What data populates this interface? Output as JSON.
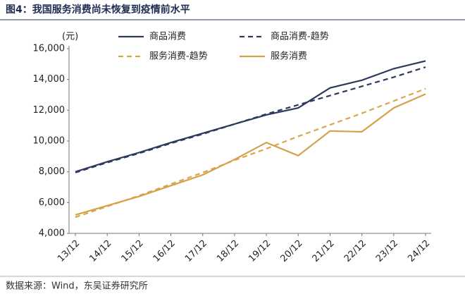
{
  "chart_data": {
    "type": "line",
    "title": "图4：我国服务消费尚未恢复到疫情前水平",
    "y_unit": "(元)",
    "source": "数据来源：Wind，东吴证券研究所",
    "categories": [
      "13/12",
      "14/12",
      "15/12",
      "16/12",
      "17/12",
      "18/12",
      "19/12",
      "20/12",
      "21/12",
      "22/12",
      "23/12",
      "24/12"
    ],
    "series": [
      {
        "name": "商品消费",
        "color": "#2e3a5c",
        "style": "solid",
        "values": [
          8000,
          8650,
          9250,
          9900,
          10500,
          11100,
          11700,
          12150,
          13450,
          13950,
          14700,
          15200
        ]
      },
      {
        "name": "商品消费-趋势",
        "color": "#2e3a5c",
        "style": "dashed",
        "values": [
          7950,
          8600,
          9200,
          9850,
          10450,
          11100,
          11750,
          12350,
          12950,
          13550,
          14150,
          14800
        ]
      },
      {
        "name": "服务消费-趋势",
        "color": "#dba54e",
        "style": "dashed",
        "values": [
          5050,
          5750,
          6450,
          7200,
          7950,
          8750,
          9500,
          10300,
          11050,
          11800,
          12600,
          13400
        ]
      },
      {
        "name": "服务消费",
        "color": "#d4a04a",
        "style": "solid",
        "values": [
          5200,
          5800,
          6400,
          7100,
          7800,
          8800,
          9900,
          9050,
          10650,
          10600,
          12150,
          13050
        ]
      }
    ],
    "ylim": [
      4000,
      16000
    ],
    "yticks": [
      {
        "value": 4000,
        "label": "4,000"
      },
      {
        "value": 6000,
        "label": "6,000"
      },
      {
        "value": 8000,
        "label": "8,000"
      },
      {
        "value": 10000,
        "label": "10,000"
      },
      {
        "value": 12000,
        "label": "12,000"
      },
      {
        "value": 14000,
        "label": "14,000"
      },
      {
        "value": 16000,
        "label": "16,000"
      }
    ],
    "grid": false
  }
}
